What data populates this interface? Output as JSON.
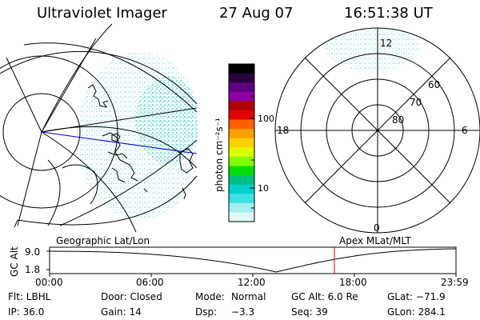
{
  "header": {
    "title": "Ultraviolet Imager",
    "date": "27 Aug 07",
    "time": "16:51:38 UT"
  },
  "colorbar": {
    "label": "photon cm⁻²s⁻¹",
    "ticks": [
      "100",
      "10"
    ],
    "colors": [
      "#000000",
      "#2a0040",
      "#5a0080",
      "#8a00a0",
      "#b00000",
      "#e00000",
      "#ff6000",
      "#ffa000",
      "#ffd000",
      "#e0ff00",
      "#80ff00",
      "#00e000",
      "#00c080",
      "#00d0d0",
      "#40e0e0",
      "#a0f0f0",
      "#e0f8f8"
    ]
  },
  "polar_plot": {
    "labels": {
      "top": "12",
      "left": "18",
      "right": "6",
      "bottom": "0"
    },
    "ring_labels": [
      "60",
      "70",
      "80"
    ]
  },
  "timeline": {
    "axis_label": "GC Alt",
    "left_title": "Geographic Lat/Lon",
    "right_title": "Apex MLat/MLT",
    "y_ticks": [
      "9.0",
      "1.8"
    ],
    "x_ticks": [
      "00:00",
      "06:00",
      "12:00",
      "18:00",
      "23:59"
    ],
    "marker_color": "#e00000"
  },
  "info": {
    "flt": "Flt: LBHL",
    "door": "Door: Closed",
    "mode_label": "Mode:",
    "mode_value": "Normal",
    "gc_alt": "GC Alt: 6.0 Re",
    "glat": "GLat: −71.9",
    "ip": "IP: 36.0",
    "gain": "Gain: 14",
    "dsp_label": "Dsp:",
    "dsp_value": "−3.3",
    "seq": "Seq: 39",
    "glon": "GLon: 284.1"
  }
}
